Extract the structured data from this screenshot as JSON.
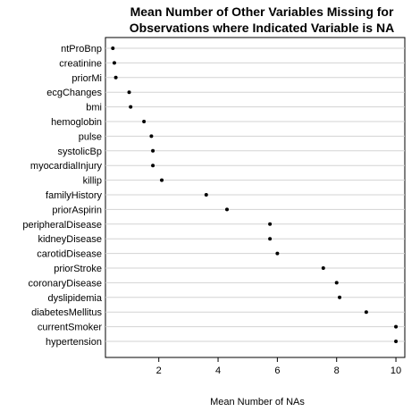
{
  "chart_data": {
    "type": "scatter",
    "title_lines": [
      "Mean Number of Other Variables Missing for",
      "Observations where Indicated Variable is NA"
    ],
    "xlabel": "Mean Number of NAs",
    "ylabel": "",
    "xlim": [
      0.2,
      10.3
    ],
    "xticks": [
      2,
      4,
      6,
      8,
      10
    ],
    "grid": "horizontal",
    "categories": [
      "ntProBnp",
      "creatinine",
      "priorMi",
      "ecgChanges",
      "bmi",
      "hemoglobin",
      "pulse",
      "systolicBp",
      "myocardialInjury",
      "killip",
      "familyHistory",
      "priorAspirin",
      "peripheralDisease",
      "kidneyDisease",
      "carotidDisease",
      "priorStroke",
      "coronaryDisease",
      "dyslipidemia",
      "diabetesMellitus",
      "currentSmoker",
      "hypertension"
    ],
    "values": [
      0.45,
      0.5,
      0.55,
      1.0,
      1.05,
      1.5,
      1.75,
      1.8,
      1.8,
      2.1,
      3.6,
      4.3,
      5.75,
      5.75,
      6.0,
      7.55,
      8.0,
      8.1,
      9.0,
      10.0,
      10.0
    ]
  }
}
